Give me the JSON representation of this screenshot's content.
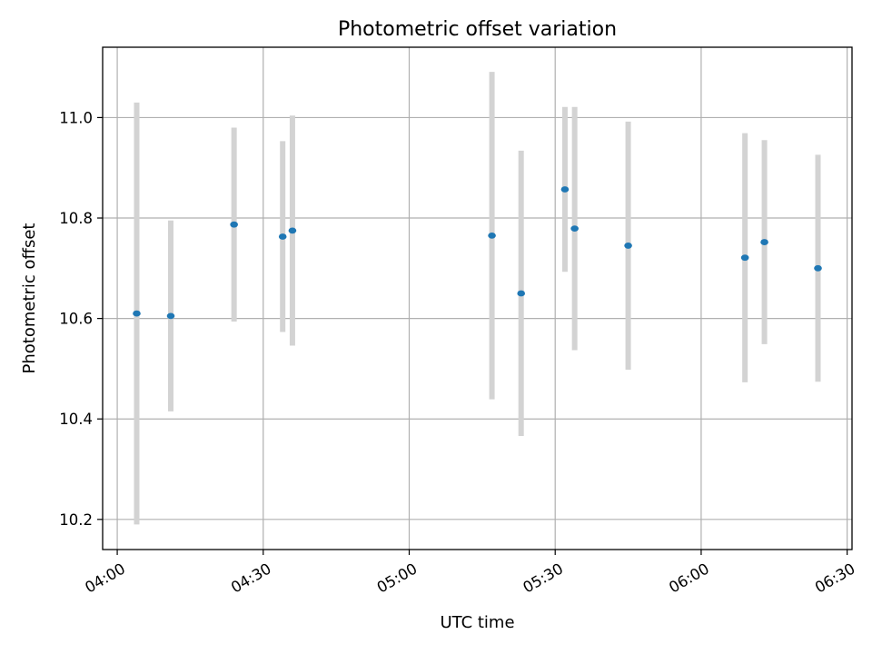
{
  "chart_data": {
    "type": "scatter",
    "title": "Photometric offset variation",
    "xlabel": "UTC time",
    "ylabel": "Photometric offset",
    "xlim": [
      "03:57",
      "06:31"
    ],
    "ylim": [
      10.14,
      11.14
    ],
    "x_ticks": [
      "04:00",
      "04:30",
      "05:00",
      "05:30",
      "06:00",
      "06:30"
    ],
    "y_ticks": [
      "10.2",
      "10.4",
      "10.6",
      "10.8",
      "11.0"
    ],
    "grid": true,
    "points": [
      {
        "x": "04:04",
        "y": 10.61,
        "err_low": 10.19,
        "err_high": 11.03
      },
      {
        "x": "04:11",
        "y": 10.605,
        "err_low": 10.415,
        "err_high": 10.795
      },
      {
        "x": "04:24",
        "y": 10.787,
        "err_low": 10.594,
        "err_high": 10.98
      },
      {
        "x": "04:34",
        "y": 10.763,
        "err_low": 10.573,
        "err_high": 10.953
      },
      {
        "x": "04:36",
        "y": 10.775,
        "err_low": 10.546,
        "err_high": 11.004
      },
      {
        "x": "05:17",
        "y": 10.765,
        "err_low": 10.439,
        "err_high": 11.091
      },
      {
        "x": "05:23",
        "y": 10.65,
        "err_low": 10.366,
        "err_high": 10.934
      },
      {
        "x": "05:32",
        "y": 10.857,
        "err_low": 10.693,
        "err_high": 11.021
      },
      {
        "x": "05:34",
        "y": 10.779,
        "err_low": 10.537,
        "err_high": 11.021
      },
      {
        "x": "05:45",
        "y": 10.745,
        "err_low": 10.498,
        "err_high": 10.992
      },
      {
        "x": "06:09",
        "y": 10.721,
        "err_low": 10.473,
        "err_high": 10.969
      },
      {
        "x": "06:13",
        "y": 10.752,
        "err_low": 10.549,
        "err_high": 10.955
      },
      {
        "x": "06:24",
        "y": 10.7,
        "err_low": 10.474,
        "err_high": 10.926
      }
    ]
  }
}
